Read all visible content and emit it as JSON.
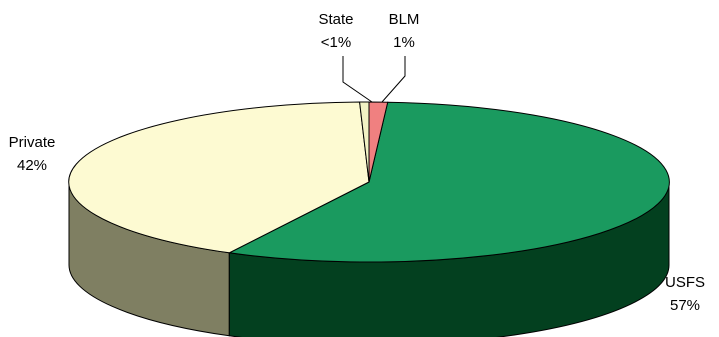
{
  "chart_data": {
    "type": "pie",
    "style": "3d",
    "legend": "none",
    "slices": [
      {
        "label": "USFS",
        "value_text": "57%",
        "value": 57,
        "color": "#1a9a5f",
        "side_color": "#03401f"
      },
      {
        "label": "Private",
        "value_text": "42%",
        "value": 42,
        "color": "#fdfad2",
        "side_color": "#7f7f62"
      },
      {
        "label": "State",
        "value_text": "<1%",
        "value": 0.5,
        "color": "#f2f2c4",
        "side_color": "#7a7a5a"
      },
      {
        "label": "BLM",
        "value_text": "1%",
        "value": 1,
        "color": "#f08080",
        "side_color": "#7a3a3a"
      }
    ]
  }
}
